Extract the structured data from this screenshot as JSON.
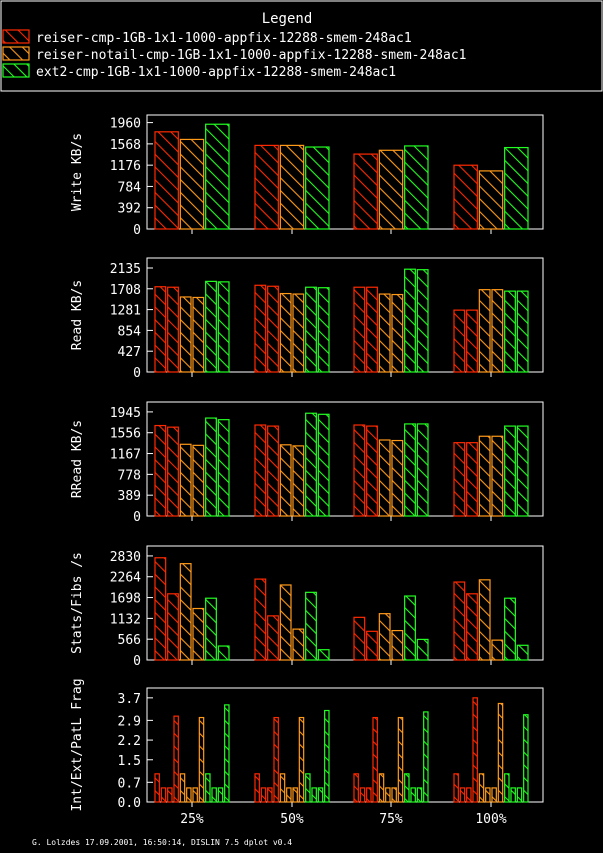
{
  "legend": {
    "title": "Legend",
    "items": [
      {
        "label": "reiser-cmp-1GB-1x1-1000-appfix-12288-smem-248ac1",
        "color": "#ff2a00"
      },
      {
        "label": "reiser-notail-cmp-1GB-1x1-1000-appfix-12288-smem-248ac1",
        "color": "#ff9a1a"
      },
      {
        "label": "ext2-cmp-1GB-1x1-1000-appfix-12288-smem-248ac1",
        "color": "#22ff22"
      }
    ]
  },
  "footer": "G. Lolzdes 17.09.2001, 16:50:14, DISLIN 7.5 dplot v0.4",
  "chart_data": [
    {
      "type": "bar",
      "ylabel": "Write KB/s",
      "categories": [
        "25%",
        "50%",
        "75%",
        "100%"
      ],
      "yticks": [
        "0",
        "392",
        "784",
        "1176",
        "1568",
        "1960"
      ],
      "ylim": [
        0,
        2100
      ],
      "bars_per_series": 1,
      "series": [
        {
          "values": [
            [
              1790
            ],
            [
              1540
            ],
            [
              1380
            ],
            [
              1175
            ]
          ]
        },
        {
          "values": [
            [
              1650
            ],
            [
              1540
            ],
            [
              1450
            ],
            [
              1070
            ]
          ]
        },
        {
          "values": [
            [
              1930
            ],
            [
              1510
            ],
            [
              1530
            ],
            [
              1500
            ]
          ]
        }
      ]
    },
    {
      "type": "bar",
      "ylabel": "Read KB/s",
      "categories": [
        "25%",
        "50%",
        "75%",
        "100%"
      ],
      "yticks": [
        "0",
        "427",
        "854",
        "1281",
        "1708",
        "2135"
      ],
      "ylim": [
        0,
        2340
      ],
      "bars_per_series": 2,
      "series": [
        {
          "values": [
            [
              1750,
              1740
            ],
            [
              1780,
              1760
            ],
            [
              1740,
              1740
            ],
            [
              1270,
              1270
            ]
          ]
        },
        {
          "values": [
            [
              1540,
              1530
            ],
            [
              1610,
              1600
            ],
            [
              1600,
              1590
            ],
            [
              1690,
              1690
            ]
          ]
        },
        {
          "values": [
            [
              1860,
              1850
            ],
            [
              1740,
              1730
            ],
            [
              2110,
              2100
            ],
            [
              1660,
              1660
            ]
          ]
        }
      ]
    },
    {
      "type": "bar",
      "ylabel": "RRead KB/s",
      "categories": [
        "25%",
        "50%",
        "75%",
        "100%"
      ],
      "yticks": [
        "0",
        "389",
        "778",
        "1167",
        "1556",
        "1945"
      ],
      "ylim": [
        0,
        2130
      ],
      "bars_per_series": 2,
      "series": [
        {
          "values": [
            [
              1690,
              1660
            ],
            [
              1700,
              1680
            ],
            [
              1700,
              1680
            ],
            [
              1370,
              1370
            ]
          ]
        },
        {
          "values": [
            [
              1340,
              1320
            ],
            [
              1330,
              1310
            ],
            [
              1420,
              1410
            ],
            [
              1490,
              1490
            ]
          ]
        },
        {
          "values": [
            [
              1830,
              1800
            ],
            [
              1920,
              1900
            ],
            [
              1720,
              1720
            ],
            [
              1680,
              1680
            ]
          ]
        }
      ]
    },
    {
      "type": "bar",
      "ylabel": "Stats/Fibs /s",
      "categories": [
        "25%",
        "50%",
        "75%",
        "100%"
      ],
      "yticks": [
        "0",
        "566",
        "1132",
        "1698",
        "2264",
        "2830"
      ],
      "ylim": [
        0,
        3100
      ],
      "bars_per_series": 2,
      "series": [
        {
          "values": [
            [
              2780,
              1800
            ],
            [
              2200,
              1200
            ],
            [
              1160,
              780
            ],
            [
              2120,
              1800
            ]
          ]
        },
        {
          "values": [
            [
              2620,
              1400
            ],
            [
              2040,
              840
            ],
            [
              1260,
              800
            ],
            [
              2180,
              540
            ]
          ]
        },
        {
          "values": [
            [
              1680,
              380
            ],
            [
              1840,
              280
            ],
            [
              1740,
              560
            ],
            [
              1680,
              400
            ]
          ]
        }
      ]
    },
    {
      "type": "bar",
      "ylabel": "Int/Ext/PatL Frag",
      "categories": [
        "25%",
        "50%",
        "75%",
        "100%"
      ],
      "yticks": [
        "0.0",
        "0.7",
        "1.5",
        "2.2",
        "2.9",
        "3.7"
      ],
      "ylim": [
        0,
        4.05
      ],
      "bars_per_series": 4,
      "series": [
        {
          "values": [
            [
              1.0,
              0.5,
              0.5,
              3.05
            ],
            [
              1.0,
              0.5,
              0.5,
              3.0
            ],
            [
              1.0,
              0.5,
              0.5,
              3.0
            ],
            [
              1.0,
              0.5,
              0.5,
              3.7
            ]
          ]
        },
        {
          "values": [
            [
              1.0,
              0.5,
              0.5,
              3.0
            ],
            [
              1.0,
              0.5,
              0.5,
              3.0
            ],
            [
              1.0,
              0.5,
              0.5,
              3.0
            ],
            [
              1.0,
              0.5,
              0.5,
              3.5
            ]
          ]
        },
        {
          "values": [
            [
              1.0,
              0.5,
              0.5,
              3.45
            ],
            [
              1.0,
              0.5,
              0.5,
              3.25
            ],
            [
              1.0,
              0.5,
              0.5,
              3.2
            ],
            [
              1.0,
              0.5,
              0.5,
              3.1
            ]
          ]
        }
      ]
    }
  ]
}
